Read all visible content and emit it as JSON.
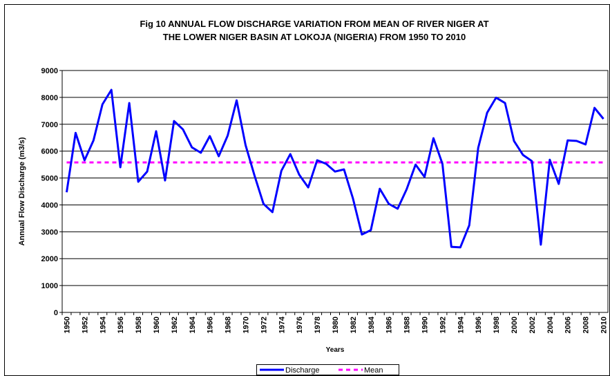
{
  "chart_data": {
    "type": "line",
    "title_lines": [
      "Fig 10  ANNUAL FLOW DISCHARGE VARIATION FROM MEAN OF RIVER NIGER AT",
      "THE LOWER NIGER BASIN AT LOKOJA (NIGERIA) FROM 1950 TO 2010"
    ],
    "x_label": "Years",
    "y_label": "Annual Flow Discharge (m3/s)",
    "categories": [
      "1950",
      null,
      "1952",
      null,
      "1954",
      null,
      "1956",
      null,
      "1958",
      null,
      "1960",
      null,
      "1962",
      null,
      "1964",
      null,
      "1966",
      null,
      "1968",
      null,
      "1970",
      null,
      "1972",
      null,
      "1974",
      null,
      "1976",
      null,
      "1978",
      null,
      "1980",
      null,
      "1982",
      null,
      "1984",
      null,
      "1986",
      null,
      "1988",
      null,
      "1990",
      null,
      "1992",
      null,
      "1994",
      null,
      "1996",
      null,
      "1998",
      null,
      "2000",
      null,
      "2002",
      null,
      "2004",
      null,
      "2006",
      null,
      "2008",
      null,
      "2010"
    ],
    "series": [
      {
        "name": "Discharge",
        "color": "#0000ff",
        "dashed": false,
        "values": [
          4470,
          6680,
          5660,
          6400,
          7740,
          8280,
          5400,
          7790,
          4860,
          5240,
          6740,
          4910,
          7120,
          6810,
          6140,
          5940,
          6560,
          5810,
          6580,
          7890,
          6220,
          5090,
          4040,
          3730,
          5270,
          5890,
          5120,
          4650,
          5660,
          5530,
          5240,
          5320,
          4240,
          2900,
          3060,
          4600,
          4040,
          3860,
          4580,
          5500,
          5040,
          6480,
          5530,
          2440,
          2420,
          3240,
          6120,
          7430,
          7990,
          7790,
          6380,
          5860,
          5630,
          2520,
          5680,
          4780,
          6400,
          6380,
          6250,
          7610,
          7200
        ]
      },
      {
        "name": "Mean",
        "color": "#ff00ff",
        "dashed": true,
        "values": [
          5580,
          5580,
          5580,
          5580,
          5580,
          5580,
          5580,
          5580,
          5580,
          5580,
          5580,
          5580,
          5580,
          5580,
          5580,
          5580,
          5580,
          5580,
          5580,
          5580,
          5580,
          5580,
          5580,
          5580,
          5580,
          5580,
          5580,
          5580,
          5580,
          5580,
          5580,
          5580,
          5580,
          5580,
          5580,
          5580,
          5580,
          5580,
          5580,
          5580,
          5580,
          5580,
          5580,
          5580,
          5580,
          5580,
          5580,
          5580,
          5580,
          5580,
          5580,
          5580,
          5580,
          5580,
          5580,
          5580,
          5580,
          5580,
          5580,
          5580,
          5580
        ]
      }
    ],
    "ylim": [
      0,
      9000
    ],
    "yticks": [
      0,
      1000,
      2000,
      3000,
      4000,
      5000,
      6000,
      7000,
      8000,
      9000
    ],
    "grid": true,
    "legend": "bottom"
  }
}
